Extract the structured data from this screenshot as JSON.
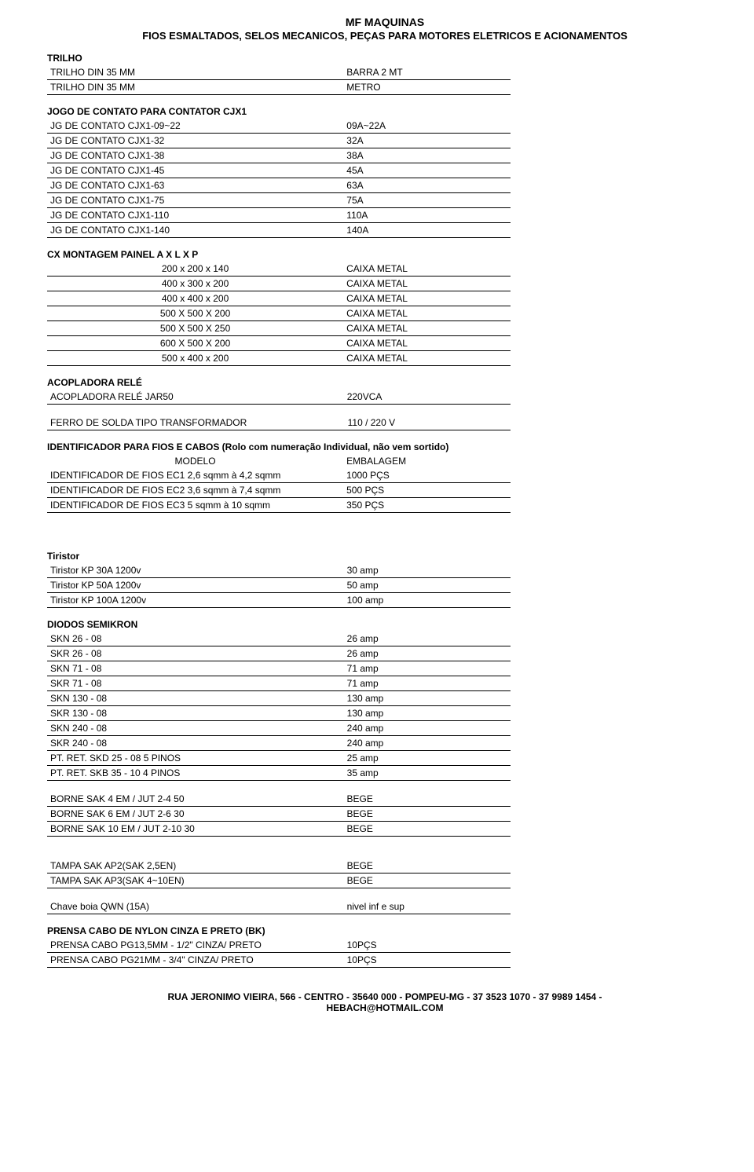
{
  "header": {
    "title": "MF MAQUINAS",
    "sub": "FIOS ESMALTADOS, SELOS MECANICOS,  PEÇAS PARA MOTORES ELETRICOS E ACIONAMENTOS"
  },
  "sections": {
    "trilho": {
      "title": "TRILHO",
      "rows": [
        [
          "TRILHO DIN  35 MM",
          "BARRA 2 MT"
        ],
        [
          "TRILHO DIN  35 MM",
          "METRO"
        ]
      ]
    },
    "jogo": {
      "title": "JOGO DE CONTATO PARA CONTATOR CJX1",
      "rows": [
        [
          "JG DE CONTATO CJX1-09~22",
          "09A~22A"
        ],
        [
          "JG DE CONTATO CJX1-32",
          "32A"
        ],
        [
          "JG DE CONTATO CJX1-38",
          "38A"
        ],
        [
          "JG DE CONTATO CJX1-45",
          "45A"
        ],
        [
          "JG DE CONTATO CJX1-63",
          "63A"
        ],
        [
          "JG DE CONTATO CJX1-75",
          "75A"
        ],
        [
          "JG DE CONTATO CJX1-110",
          "110A"
        ],
        [
          "JG DE CONTATO CJX1-140",
          "140A"
        ]
      ]
    },
    "cx": {
      "title": "CX  MONTAGEM PAINEL   A X L X P",
      "rows": [
        [
          "200 x 200 x 140",
          "CAIXA METAL"
        ],
        [
          "400 x 300 x 200",
          "CAIXA METAL"
        ],
        [
          "400 x 400 x 200",
          "CAIXA METAL"
        ],
        [
          "500 X 500 X 200",
          "CAIXA METAL"
        ],
        [
          "500 X 500 X 250",
          "CAIXA METAL"
        ],
        [
          "600 X 500 X 200",
          "CAIXA METAL"
        ],
        [
          "500 x 400 x 200",
          "CAIXA METAL"
        ]
      ]
    },
    "acopladora": {
      "title": "ACOPLADORA RELÉ",
      "rows": [
        [
          "ACOPLADORA RELÉ JAR50",
          "220VCA"
        ]
      ]
    },
    "ferro": {
      "rows": [
        [
          "FERRO DE SOLDA    TIPO TRANSFORMADOR",
          "110 / 220 V"
        ]
      ]
    },
    "identificador": {
      "title": "IDENTIFICADOR PARA FIOS E CABOS  (Rolo com numeração Individual, não vem sortido)",
      "header_row": [
        "MODELO",
        "EMBALAGEM"
      ],
      "rows": [
        [
          "IDENTIFICADOR DE FIOS EC1  2,6 sqmm à 4,2 sqmm",
          "1000 PÇS"
        ],
        [
          "IDENTIFICADOR DE FIOS EC2  3,6 sqmm à 7,4 sqmm",
          "500 PÇS"
        ],
        [
          "IDENTIFICADOR DE FIOS EC3  5 sqmm à 10 sqmm",
          "350 PÇS"
        ]
      ]
    },
    "tiristor": {
      "title": "Tiristor",
      "rows": [
        [
          "Tiristor KP 30A          1200v",
          "30 amp"
        ],
        [
          "Tiristor KP 50A          1200v",
          "50 amp"
        ],
        [
          "Tiristor KP 100A        1200v",
          "100 amp"
        ]
      ]
    },
    "diodos": {
      "title": "DIODOS SEMIKRON",
      "rows": [
        [
          "SKN   26 - 08",
          "26 amp"
        ],
        [
          "SKR   26 - 08",
          "26 amp"
        ],
        [
          "SKN   71 - 08",
          "71 amp"
        ],
        [
          "SKR   71 - 08",
          "71 amp"
        ],
        [
          "SKN  130 - 08",
          "130 amp"
        ],
        [
          "SKR  130 - 08",
          "130 amp"
        ],
        [
          "SKN  240 - 08",
          "240 amp"
        ],
        [
          "SKR  240 - 08",
          "240 amp"
        ],
        [
          "PT. RET. SKD 25 - 08        5 PINOS",
          "25 amp"
        ],
        [
          "PT. RET. SKB 35 - 10        4 PINOS",
          "35 amp"
        ]
      ]
    },
    "borne": {
      "rows": [
        [
          "BORNE SAK 4 EM     / JUT 2-4            50",
          "BEGE"
        ],
        [
          "BORNE SAK 6 EM     / JUT 2-6            30",
          "BEGE"
        ],
        [
          "BORNE SAK 10 EM    / JUT 2-10        30",
          "BEGE"
        ]
      ]
    },
    "tampa": {
      "rows": [
        [
          "TAMPA SAK AP2(SAK 2,5EN)",
          "BEGE"
        ],
        [
          "TAMPA SAK AP3(SAK 4~10EN)",
          "BEGE"
        ]
      ]
    },
    "chave": {
      "rows": [
        [
          "Chave boia QWN (15A)",
          "nivel inf e sup"
        ]
      ]
    },
    "prensa": {
      "title": "PRENSA CABO DE NYLON CINZA E PRETO (BK)",
      "rows": [
        [
          "PRENSA CABO PG13,5MM - 1/2\"      CINZA/ PRETO",
          "10PÇS"
        ],
        [
          "PRENSA CABO PG21MM - 3/4\"         CINZA/ PRETO",
          "10PÇS"
        ]
      ]
    }
  },
  "footer": {
    "line1": "RUA JERONIMO VIEIRA, 566 - CENTRO - 35640 000 - POMPEU-MG - 37 3523 1070 - 37 9989 1454 -",
    "line2": "HEBACH@HOTMAIL.COM"
  }
}
